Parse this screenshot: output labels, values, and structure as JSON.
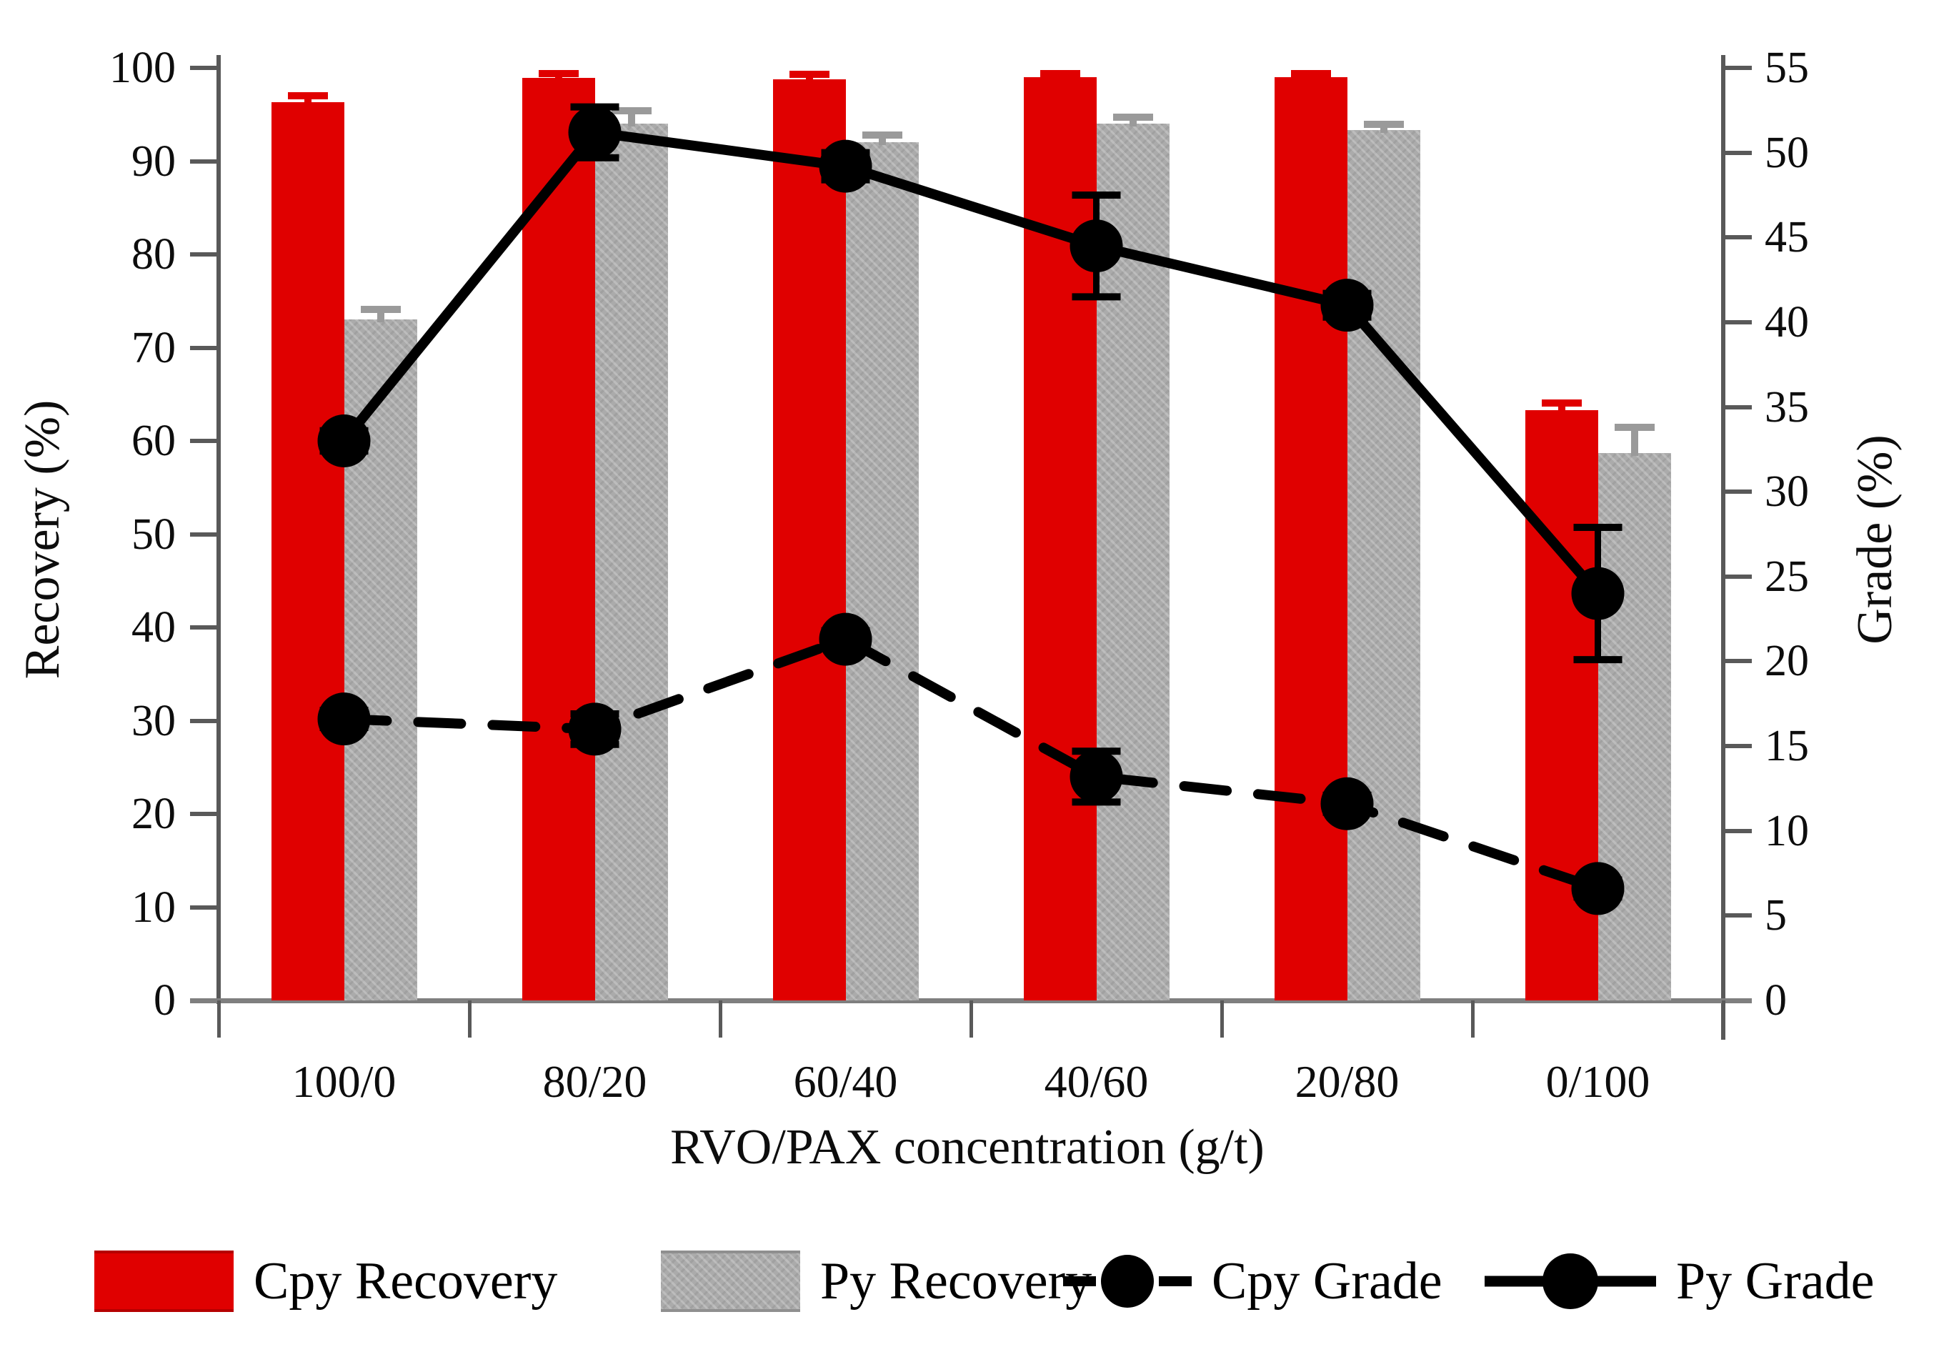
{
  "chart_data": {
    "type": "combo-bar-line",
    "categories": [
      "100/0",
      "80/20",
      "60/40",
      "40/60",
      "20/80",
      "0/100"
    ],
    "xlabel": "RVO/PAX concentration (g/t)",
    "left_axis": {
      "label": "Recovery (%)",
      "min": 0,
      "max": 100,
      "step": 10
    },
    "right_axis": {
      "label": "Grade (%)",
      "min": 0,
      "max": 55,
      "step": 5
    },
    "grid": false,
    "legend_position": "bottom",
    "bar_series": [
      {
        "name": "Cpy Recovery",
        "axis": "left",
        "color": "#e00000",
        "values": [
          96.3,
          98.9,
          98.8,
          99.0,
          99.0,
          63.3
        ],
        "errors": [
          0.8,
          0.6,
          0.6,
          0.5,
          0.5,
          0.8
        ]
      },
      {
        "name": "Py Recovery",
        "axis": "left",
        "color": "#ababab",
        "values": [
          73.0,
          94.0,
          92.0,
          94.0,
          93.3,
          58.7
        ],
        "errors": [
          1.2,
          1.5,
          0.9,
          0.8,
          0.7,
          2.8
        ]
      }
    ],
    "line_series": [
      {
        "name": "Cpy Grade",
        "axis": "right",
        "style": "dashed",
        "color": "#000000",
        "values": [
          16.6,
          16.0,
          21.3,
          13.2,
          11.6,
          6.6
        ],
        "errors": [
          0.5,
          0.9,
          0.5,
          1.5,
          0.5,
          0.5
        ]
      },
      {
        "name": "Py Grade",
        "axis": "right",
        "style": "solid",
        "color": "#000000",
        "values": [
          33.0,
          51.2,
          49.2,
          44.5,
          41.0,
          24.0
        ],
        "errors": [
          0.6,
          1.5,
          0.8,
          3.0,
          0.7,
          3.9
        ]
      }
    ],
    "legend": [
      "Cpy Recovery",
      "Py Recovery",
      "Cpy Grade",
      "Py Grade"
    ]
  }
}
